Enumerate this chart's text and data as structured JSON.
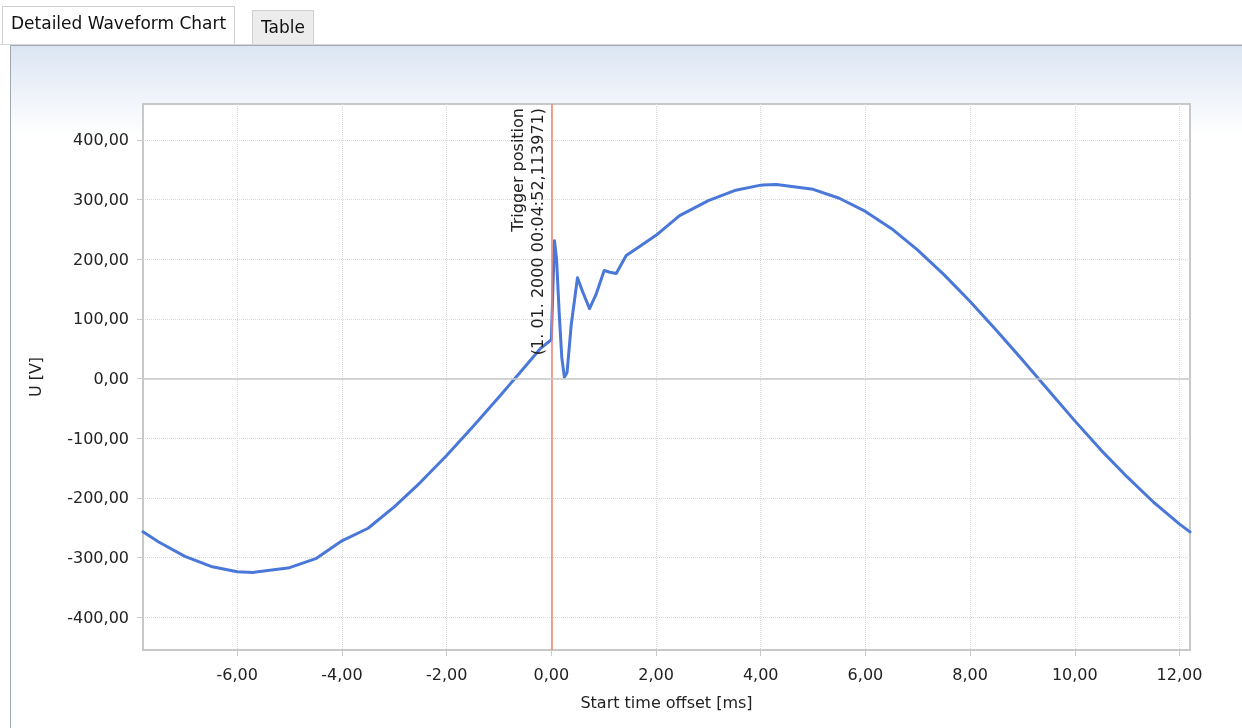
{
  "chart_data": {
    "type": "line",
    "xlabel": "Start time offset [ms]",
    "ylabel": "U [V]",
    "annotations": [
      "Detailed Waveform Chart",
      "Table"
    ],
    "series": [
      {
        "color": "#4a78d8",
        "x": [
          -7.8,
          -7.5,
          -7,
          -6.5,
          -6,
          -5.7,
          -5,
          -4.5,
          -4,
          -3.5,
          -3,
          -2.5,
          -2,
          -1.5,
          -1,
          -0.5,
          -0.2,
          0,
          0.03,
          0.06,
          0.1,
          0.15,
          0.2,
          0.25,
          0.3,
          0.38,
          0.5,
          0.6,
          0.73,
          0.85,
          1.01,
          1.12,
          1.24,
          1.43,
          1.7,
          2,
          2.45,
          3,
          3.5,
          4,
          4.3,
          5,
          5.5,
          6,
          6.5,
          7,
          7.5,
          8,
          8.5,
          9,
          9.5,
          10,
          10.5,
          11,
          11.5,
          12,
          12.2
        ],
        "values": [
          -257,
          -274,
          -298,
          -315,
          -324,
          -325,
          -317,
          -302,
          -272,
          -251,
          -215,
          -174,
          -129,
          -81,
          -31,
          20,
          51,
          65,
          150,
          231,
          200,
          110,
          35,
          2,
          10,
          90,
          169,
          145,
          117,
          140,
          181,
          178,
          176,
          206,
          222,
          240,
          273,
          298,
          315,
          324,
          325,
          317,
          302,
          280,
          251,
          215,
          174,
          129,
          81,
          31,
          -20,
          -71,
          -120,
          -165,
          -207,
          -244,
          -257
        ]
      }
    ],
    "xlim": [
      -7.8,
      12.2
    ],
    "ylim": [
      -455,
      460
    ],
    "xticks": [
      {
        "value": -6,
        "label": "-6,00"
      },
      {
        "value": -4,
        "label": "-4,00"
      },
      {
        "value": -2,
        "label": "-2,00"
      },
      {
        "value": 0,
        "label": "0,00"
      },
      {
        "value": 2,
        "label": "2,00"
      },
      {
        "value": 4,
        "label": "4,00"
      },
      {
        "value": 6,
        "label": "6,00"
      },
      {
        "value": 8,
        "label": "8,00"
      },
      {
        "value": 10,
        "label": "10,00"
      },
      {
        "value": 12,
        "label": "12,00"
      }
    ],
    "yticks": [
      {
        "value": -400,
        "label": "-400,00"
      },
      {
        "value": -300,
        "label": "-300,00"
      },
      {
        "value": -200,
        "label": "-200,00"
      },
      {
        "value": -100,
        "label": "-100,00"
      },
      {
        "value": 0,
        "label": "0,00"
      },
      {
        "value": 100,
        "label": "100,00"
      },
      {
        "value": 200,
        "label": "200,00"
      },
      {
        "value": 300,
        "label": "300,00"
      },
      {
        "value": 400,
        "label": "400,00"
      }
    ],
    "ref_lines": [
      {
        "axis": "x",
        "value": 0,
        "label": "Trigger position\n(1. 01. 2000 00:04:52,113971)",
        "color": "#f08070"
      },
      {
        "axis": "y",
        "value": 0,
        "color": "#c8c8c8"
      }
    ],
    "grid": true,
    "marker": "none",
    "line_style": "solid"
  }
}
